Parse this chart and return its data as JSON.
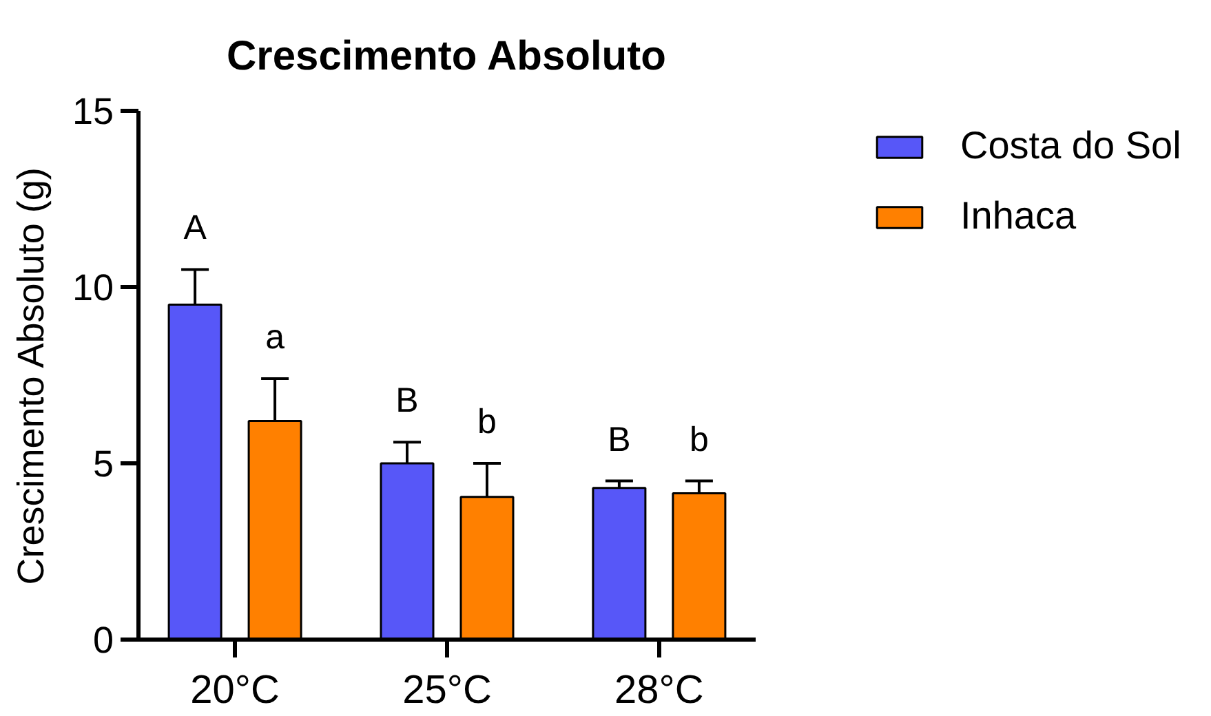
{
  "chart_data": {
    "type": "bar",
    "title": "Crescimento Absoluto",
    "ylabel": "Crescimento Absoluto (g)",
    "categories": [
      "20°C",
      "25°C",
      "28°C"
    ],
    "series": [
      {
        "name": "Costa do Sol",
        "color": "#5757f8",
        "values": [
          9.5,
          5.0,
          4.3
        ],
        "errors": [
          [
            9.5,
            10.5
          ],
          [
            5.0,
            5.6
          ],
          [
            4.3,
            4.5
          ]
        ],
        "value_labels": [
          "A",
          "B",
          "B"
        ]
      },
      {
        "name": "Inhaca",
        "color": "#ff8000",
        "values": [
          6.2,
          4.05,
          4.15
        ],
        "errors": [
          [
            6.2,
            7.4
          ],
          [
            4.05,
            5.0
          ],
          [
            4.15,
            4.5
          ]
        ],
        "value_labels": [
          "a",
          "b",
          "b"
        ]
      }
    ],
    "ylim": [
      0,
      15
    ],
    "yticks": [
      0,
      5,
      10,
      15
    ],
    "legend": "top right"
  }
}
